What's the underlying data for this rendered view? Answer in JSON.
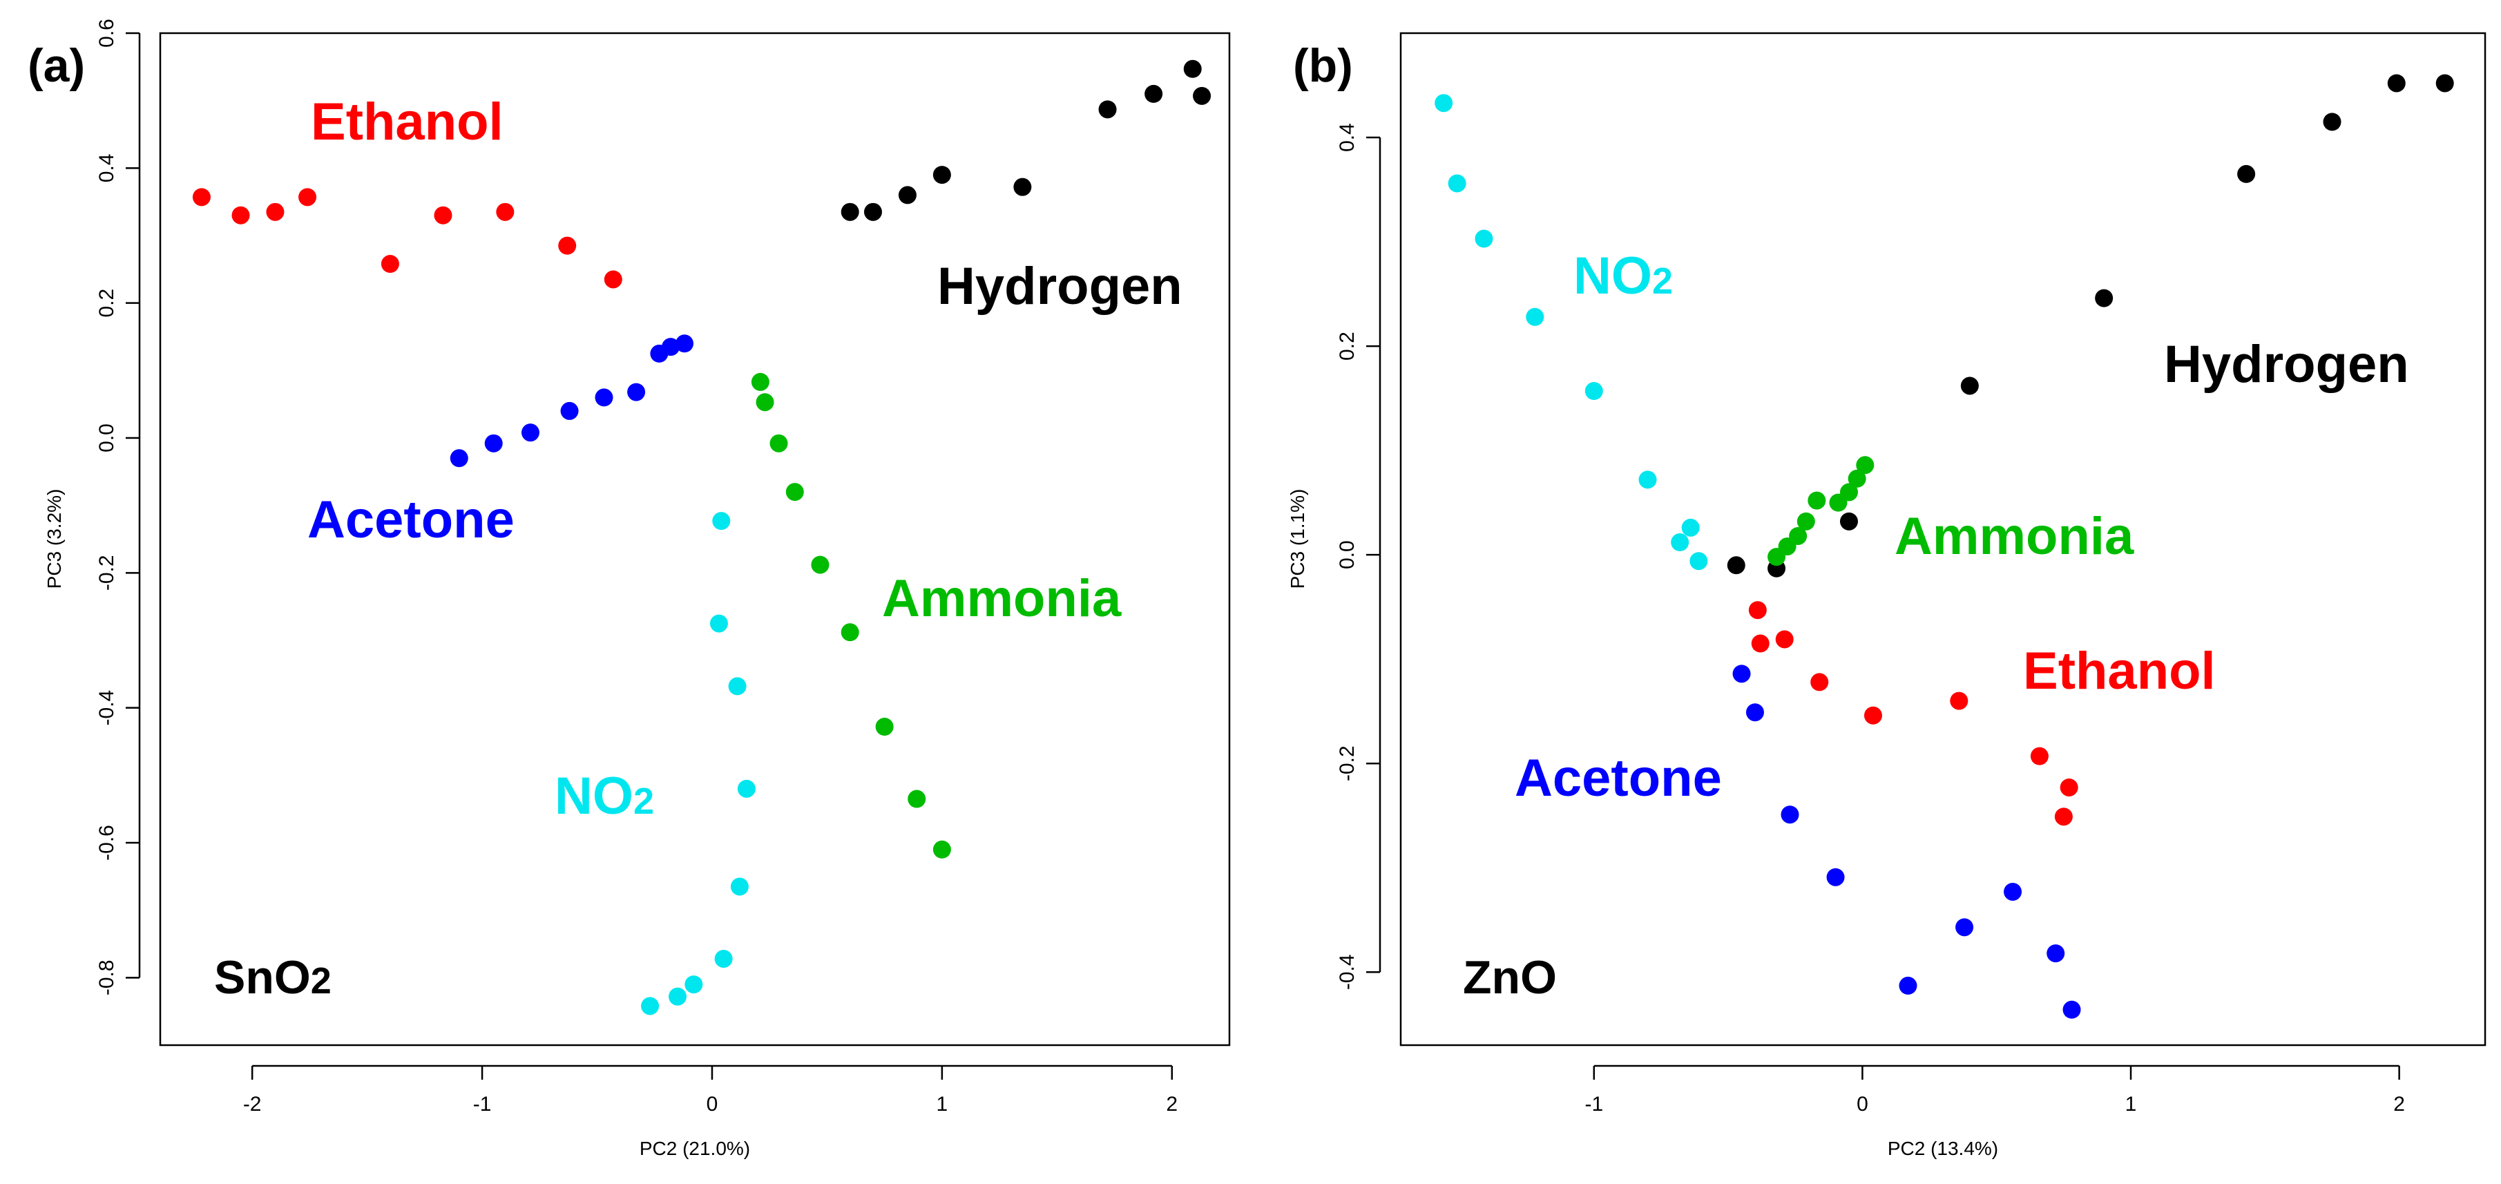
{
  "chart_data": [
    {
      "type": "scatter",
      "panel": "(a)",
      "material": "SnO",
      "material_sub": "2",
      "xlabel": "PC2 (21.0%)",
      "ylabel": "PC3 (3.2%)",
      "xlim": [
        -2.4,
        2.25
      ],
      "ylim": [
        -0.9,
        0.6
      ],
      "xticks": [
        -2,
        -1,
        0,
        1,
        2
      ],
      "yticks": [
        -0.8,
        -0.6,
        -0.4,
        -0.2,
        0.0,
        0.2,
        0.4,
        0.6
      ],
      "ytick_labels": [
        "-0.8",
        "-0.6",
        "-0.4",
        "-0.2",
        "0.0",
        "0.2",
        "0.4",
        "0.6"
      ],
      "series": [
        {
          "name": "Ethanol",
          "sub": "",
          "color": "#ff0000",
          "points": [
            [
              -2.22,
              0.357
            ],
            [
              -2.05,
              0.33
            ],
            [
              -1.9,
              0.335
            ],
            [
              -1.76,
              0.357
            ],
            [
              -1.4,
              0.258
            ],
            [
              -1.17,
              0.33
            ],
            [
              -0.9,
              0.335
            ],
            [
              -0.63,
              0.285
            ],
            [
              -0.43,
              0.235
            ]
          ]
        },
        {
          "name": "Acetone",
          "sub": "",
          "color": "#0000ff",
          "points": [
            [
              -1.1,
              -0.03
            ],
            [
              -0.95,
              -0.008
            ],
            [
              -0.79,
              0.008
            ],
            [
              -0.62,
              0.04
            ],
            [
              -0.47,
              0.06
            ],
            [
              -0.33,
              0.068
            ],
            [
              -0.23,
              0.125
            ],
            [
              -0.18,
              0.135
            ],
            [
              -0.12,
              0.14
            ]
          ]
        },
        {
          "name": "Hydrogen",
          "sub": "",
          "color": "#000000",
          "points": [
            [
              0.6,
              0.335
            ],
            [
              0.7,
              0.335
            ],
            [
              0.85,
              0.36
            ],
            [
              1.0,
              0.39
            ],
            [
              1.35,
              0.372
            ],
            [
              1.72,
              0.487
            ],
            [
              1.92,
              0.51
            ],
            [
              2.09,
              0.547
            ],
            [
              2.13,
              0.507
            ]
          ]
        },
        {
          "name": "Ammonia",
          "sub": "",
          "color": "#00bb00",
          "points": [
            [
              0.21,
              0.083
            ],
            [
              0.23,
              0.053
            ],
            [
              0.29,
              -0.008
            ],
            [
              0.36,
              -0.08
            ],
            [
              0.47,
              -0.188
            ],
            [
              0.6,
              -0.288
            ],
            [
              0.75,
              -0.428
            ],
            [
              0.89,
              -0.535
            ],
            [
              1.0,
              -0.61
            ]
          ]
        },
        {
          "name": "NO",
          "sub": "2",
          "color": "#00e6ee",
          "points": [
            [
              0.04,
              -0.123
            ],
            [
              0.03,
              -0.275
            ],
            [
              0.11,
              -0.368
            ],
            [
              0.15,
              -0.52
            ],
            [
              0.12,
              -0.665
            ],
            [
              0.05,
              -0.772
            ],
            [
              -0.08,
              -0.81
            ],
            [
              -0.15,
              -0.828
            ],
            [
              -0.27,
              -0.842
            ]
          ]
        }
      ]
    },
    {
      "type": "scatter",
      "panel": "(b)",
      "material": "ZnO",
      "material_sub": "",
      "xlabel": "PC2 (13.4%)",
      "ylabel": "PC3 (1.1%)",
      "xlim": [
        -1.72,
        2.32
      ],
      "ylim": [
        -0.47,
        0.5
      ],
      "xticks": [
        -1,
        0,
        1,
        2
      ],
      "yticks": [
        -0.4,
        -0.2,
        0.0,
        0.2,
        0.4
      ],
      "ytick_labels": [
        "-0.4",
        "-0.2",
        "0.0",
        "0.2",
        "0.4"
      ],
      "series": [
        {
          "name": "Hydrogen",
          "sub": "",
          "color": "#000000",
          "points": [
            [
              2.17,
              0.452
            ],
            [
              1.99,
              0.452
            ],
            [
              1.75,
              0.415
            ],
            [
              1.43,
              0.365
            ],
            [
              0.9,
              0.246
            ],
            [
              0.4,
              0.162
            ],
            [
              -0.05,
              0.032
            ],
            [
              -0.32,
              -0.013
            ],
            [
              -0.47,
              -0.01
            ]
          ]
        },
        {
          "name": "NO",
          "sub": "2",
          "color": "#00e6ee",
          "points": [
            [
              -1.56,
              0.433
            ],
            [
              -1.51,
              0.356
            ],
            [
              -1.41,
              0.303
            ],
            [
              -1.22,
              0.228
            ],
            [
              -1.0,
              0.157
            ],
            [
              -0.8,
              0.072
            ],
            [
              -0.68,
              0.012
            ],
            [
              -0.64,
              0.026
            ],
            [
              -0.61,
              -0.006
            ]
          ]
        },
        {
          "name": "Ammonia",
          "sub": "",
          "color": "#00bb00",
          "points": [
            [
              -0.32,
              -0.002
            ],
            [
              -0.28,
              0.008
            ],
            [
              -0.24,
              0.018
            ],
            [
              -0.21,
              0.032
            ],
            [
              -0.17,
              0.052
            ],
            [
              -0.09,
              0.05
            ],
            [
              -0.05,
              0.06
            ],
            [
              -0.02,
              0.073
            ],
            [
              0.01,
              0.086
            ]
          ]
        },
        {
          "name": "Ethanol",
          "sub": "",
          "color": "#ff0000",
          "points": [
            [
              -0.39,
              -0.053
            ],
            [
              -0.38,
              -0.085
            ],
            [
              -0.29,
              -0.081
            ],
            [
              -0.16,
              -0.122
            ],
            [
              0.04,
              -0.154
            ],
            [
              0.36,
              -0.14
            ],
            [
              0.66,
              -0.193
            ],
            [
              0.77,
              -0.223
            ],
            [
              0.75,
              -0.251
            ]
          ]
        },
        {
          "name": "Acetone",
          "sub": "",
          "color": "#0000ff",
          "points": [
            [
              -0.45,
              -0.114
            ],
            [
              -0.4,
              -0.151
            ],
            [
              -0.27,
              -0.249
            ],
            [
              -0.1,
              -0.309
            ],
            [
              0.17,
              -0.413
            ],
            [
              0.38,
              -0.357
            ],
            [
              0.56,
              -0.323
            ],
            [
              0.72,
              -0.382
            ],
            [
              0.78,
              -0.436
            ]
          ]
        }
      ]
    }
  ],
  "group_labels": {
    "a": [
      {
        "text": "Ethanol",
        "sub": "",
        "color": "#ff0000"
      },
      {
        "text": "Hydrogen",
        "sub": "",
        "color": "#000000"
      },
      {
        "text": "Acetone",
        "sub": "",
        "color": "#0000ff"
      },
      {
        "text": "Ammonia",
        "sub": "",
        "color": "#00bb00"
      },
      {
        "text": "NO",
        "sub": "2",
        "color": "#00e6ee"
      }
    ],
    "b": [
      {
        "text": "NO",
        "sub": "2",
        "color": "#00e6ee"
      },
      {
        "text": "Hydrogen",
        "sub": "",
        "color": "#000000"
      },
      {
        "text": "Ammonia",
        "sub": "",
        "color": "#00bb00"
      },
      {
        "text": "Ethanol",
        "sub": "",
        "color": "#ff0000"
      },
      {
        "text": "Acetone",
        "sub": "",
        "color": "#0000ff"
      }
    ]
  }
}
